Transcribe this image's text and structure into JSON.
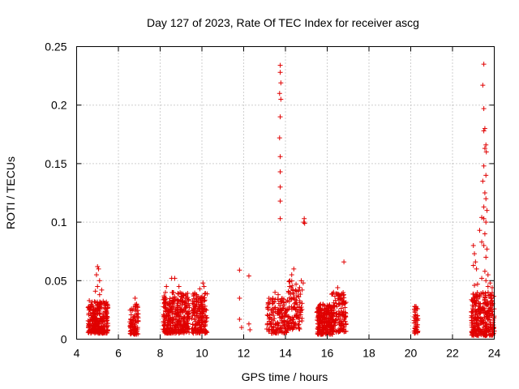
{
  "chart_data": {
    "type": "scatter",
    "title": "Day 127 of 2023, Rate Of TEC Index for receiver ascg",
    "xlabel": "GPS time / hours",
    "ylabel": "ROTI / TECUs",
    "xlim": [
      4,
      24
    ],
    "ylim": [
      0,
      0.25
    ],
    "xticks": [
      4,
      6,
      8,
      10,
      12,
      14,
      16,
      18,
      20,
      22,
      24
    ],
    "yticks": [
      0,
      0.05,
      0.1,
      0.15,
      0.2,
      0.25
    ],
    "xtick_labels": [
      "4",
      "6",
      "8",
      "10",
      "12",
      "14",
      "16",
      "18",
      "20",
      "22",
      "24"
    ],
    "ytick_labels": [
      "0",
      "0.05",
      "0.1",
      "0.15",
      "0.2",
      "0.25"
    ],
    "grid": true,
    "marker": "+",
    "color": "#e00000",
    "clusters": [
      {
        "x_range": [
          4.55,
          5.5
        ],
        "y_range": [
          0.005,
          0.033
        ],
        "n": 260
      },
      {
        "x_range": [
          6.55,
          6.95
        ],
        "y_range": [
          0.004,
          0.03
        ],
        "n": 90
      },
      {
        "x_range": [
          8.15,
          9.4
        ],
        "y_range": [
          0.005,
          0.04
        ],
        "n": 340
      },
      {
        "x_range": [
          9.5,
          10.25
        ],
        "y_range": [
          0.005,
          0.04
        ],
        "n": 180
      },
      {
        "x_range": [
          13.1,
          14.1
        ],
        "y_range": [
          0.005,
          0.035
        ],
        "n": 150
      },
      {
        "x_range": [
          14.1,
          14.8
        ],
        "y_range": [
          0.008,
          0.05
        ],
        "n": 110
      },
      {
        "x_range": [
          15.5,
          16.3
        ],
        "y_range": [
          0.004,
          0.03
        ],
        "n": 220
      },
      {
        "x_range": [
          16.2,
          16.9
        ],
        "y_range": [
          0.006,
          0.04
        ],
        "n": 140
      },
      {
        "x_range": [
          20.15,
          20.35
        ],
        "y_range": [
          0.005,
          0.028
        ],
        "n": 40
      },
      {
        "x_range": [
          22.9,
          24.0
        ],
        "y_range": [
          0.003,
          0.04
        ],
        "n": 300
      }
    ],
    "points": [
      {
        "x": 5.0,
        "y": 0.062
      },
      {
        "x": 5.05,
        "y": 0.06
      },
      {
        "x": 4.95,
        "y": 0.055
      },
      {
        "x": 5.1,
        "y": 0.05
      },
      {
        "x": 5.0,
        "y": 0.045
      },
      {
        "x": 5.2,
        "y": 0.042
      },
      {
        "x": 4.9,
        "y": 0.041
      },
      {
        "x": 5.1,
        "y": 0.038
      },
      {
        "x": 6.8,
        "y": 0.035
      },
      {
        "x": 8.55,
        "y": 0.052
      },
      {
        "x": 8.7,
        "y": 0.052
      },
      {
        "x": 8.3,
        "y": 0.045
      },
      {
        "x": 8.9,
        "y": 0.045
      },
      {
        "x": 10.05,
        "y": 0.048
      },
      {
        "x": 10.1,
        "y": 0.045
      },
      {
        "x": 9.9,
        "y": 0.043
      },
      {
        "x": 11.8,
        "y": 0.059
      },
      {
        "x": 11.8,
        "y": 0.035
      },
      {
        "x": 11.8,
        "y": 0.017
      },
      {
        "x": 11.9,
        "y": 0.01
      },
      {
        "x": 12.25,
        "y": 0.054
      },
      {
        "x": 12.25,
        "y": 0.013
      },
      {
        "x": 12.3,
        "y": 0.008
      },
      {
        "x": 13.75,
        "y": 0.234
      },
      {
        "x": 13.75,
        "y": 0.228
      },
      {
        "x": 13.78,
        "y": 0.219
      },
      {
        "x": 13.72,
        "y": 0.21
      },
      {
        "x": 13.78,
        "y": 0.205
      },
      {
        "x": 13.75,
        "y": 0.19
      },
      {
        "x": 13.72,
        "y": 0.172
      },
      {
        "x": 13.75,
        "y": 0.156
      },
      {
        "x": 13.75,
        "y": 0.143
      },
      {
        "x": 13.75,
        "y": 0.13
      },
      {
        "x": 13.75,
        "y": 0.118
      },
      {
        "x": 13.75,
        "y": 0.103
      },
      {
        "x": 13.5,
        "y": 0.04
      },
      {
        "x": 13.65,
        "y": 0.038
      },
      {
        "x": 14.3,
        "y": 0.055
      },
      {
        "x": 14.4,
        "y": 0.06
      },
      {
        "x": 14.2,
        "y": 0.045
      },
      {
        "x": 14.9,
        "y": 0.103
      },
      {
        "x": 14.88,
        "y": 0.1
      },
      {
        "x": 14.92,
        "y": 0.099
      },
      {
        "x": 14.85,
        "y": 0.048
      },
      {
        "x": 14.8,
        "y": 0.042
      },
      {
        "x": 16.8,
        "y": 0.066
      },
      {
        "x": 16.5,
        "y": 0.044
      },
      {
        "x": 16.3,
        "y": 0.04
      },
      {
        "x": 20.2,
        "y": 0.028
      },
      {
        "x": 20.3,
        "y": 0.026
      },
      {
        "x": 23.5,
        "y": 0.235
      },
      {
        "x": 23.45,
        "y": 0.217
      },
      {
        "x": 23.5,
        "y": 0.197
      },
      {
        "x": 23.55,
        "y": 0.18
      },
      {
        "x": 23.5,
        "y": 0.178
      },
      {
        "x": 23.6,
        "y": 0.166
      },
      {
        "x": 23.55,
        "y": 0.163
      },
      {
        "x": 23.62,
        "y": 0.16
      },
      {
        "x": 23.5,
        "y": 0.148
      },
      {
        "x": 23.6,
        "y": 0.14
      },
      {
        "x": 23.45,
        "y": 0.135
      },
      {
        "x": 23.55,
        "y": 0.125
      },
      {
        "x": 23.6,
        "y": 0.12
      },
      {
        "x": 23.5,
        "y": 0.113
      },
      {
        "x": 23.65,
        "y": 0.11
      },
      {
        "x": 23.4,
        "y": 0.104
      },
      {
        "x": 23.5,
        "y": 0.103
      },
      {
        "x": 23.6,
        "y": 0.1
      },
      {
        "x": 23.3,
        "y": 0.093
      },
      {
        "x": 23.55,
        "y": 0.09
      },
      {
        "x": 23.4,
        "y": 0.083
      },
      {
        "x": 23.5,
        "y": 0.08
      },
      {
        "x": 23.65,
        "y": 0.077
      },
      {
        "x": 23.0,
        "y": 0.08
      },
      {
        "x": 23.05,
        "y": 0.073
      },
      {
        "x": 23.6,
        "y": 0.07
      },
      {
        "x": 23.1,
        "y": 0.066
      },
      {
        "x": 23.0,
        "y": 0.063
      },
      {
        "x": 23.15,
        "y": 0.06
      },
      {
        "x": 23.55,
        "y": 0.058
      },
      {
        "x": 23.7,
        "y": 0.055
      },
      {
        "x": 23.4,
        "y": 0.052
      },
      {
        "x": 23.6,
        "y": 0.05
      },
      {
        "x": 23.8,
        "y": 0.048
      },
      {
        "x": 23.2,
        "y": 0.047
      },
      {
        "x": 23.05,
        "y": 0.046
      },
      {
        "x": 23.7,
        "y": 0.045
      },
      {
        "x": 23.9,
        "y": 0.044
      }
    ]
  }
}
